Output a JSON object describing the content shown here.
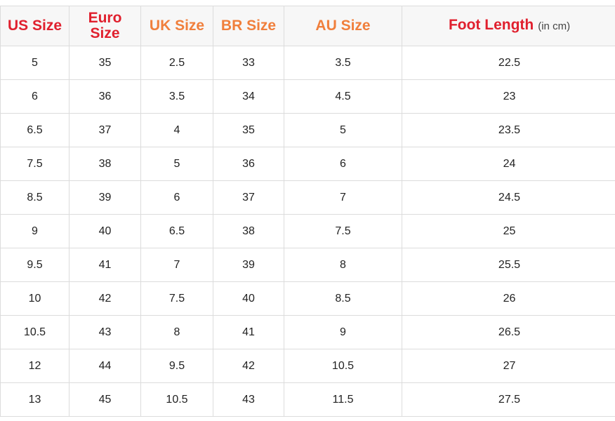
{
  "colors": {
    "red": "#e0202e",
    "orange": "#f07f3c",
    "header_bg": "#f7f7f7"
  },
  "headers": [
    {
      "label": "US Size",
      "color": "red"
    },
    {
      "label": "Euro Size",
      "color": "red"
    },
    {
      "label": "UK Size",
      "color": "orange"
    },
    {
      "label": "BR Size",
      "color": "orange"
    },
    {
      "label": "AU Size",
      "color": "orange"
    },
    {
      "label": "Foot Length",
      "unit": "(in cm)",
      "color": "red"
    }
  ],
  "rows": [
    [
      "5",
      "35",
      "2.5",
      "33",
      "3.5",
      "22.5"
    ],
    [
      "6",
      "36",
      "3.5",
      "34",
      "4.5",
      "23"
    ],
    [
      "6.5",
      "37",
      "4",
      "35",
      "5",
      "23.5"
    ],
    [
      "7.5",
      "38",
      "5",
      "36",
      "6",
      "24"
    ],
    [
      "8.5",
      "39",
      "6",
      "37",
      "7",
      "24.5"
    ],
    [
      "9",
      "40",
      "6.5",
      "38",
      "7.5",
      "25"
    ],
    [
      "9.5",
      "41",
      "7",
      "39",
      "8",
      "25.5"
    ],
    [
      "10",
      "42",
      "7.5",
      "40",
      "8.5",
      "26"
    ],
    [
      "10.5",
      "43",
      "8",
      "41",
      "9",
      "26.5"
    ],
    [
      "12",
      "44",
      "9.5",
      "42",
      "10.5",
      "27"
    ],
    [
      "13",
      "45",
      "10.5",
      "43",
      "11.5",
      "27.5"
    ]
  ]
}
